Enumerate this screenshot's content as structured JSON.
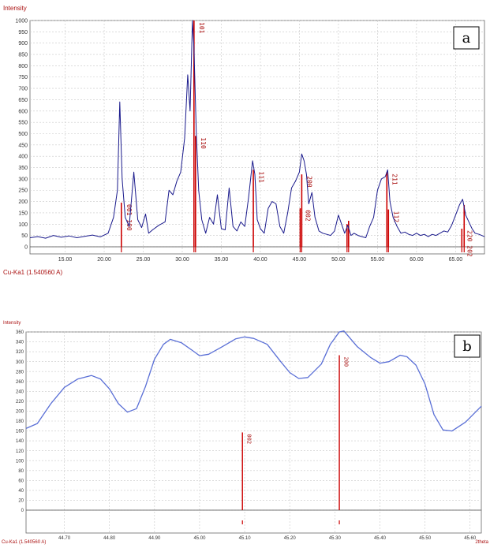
{
  "chart_data": [
    {
      "type": "line",
      "panel": "a",
      "ylabel": "Intensity",
      "xlabel": "Cu-Ka1 (1.540560 A)",
      "xlim": [
        10.5,
        68.7
      ],
      "ylim": [
        0,
        1000
      ],
      "y_ticks": [
        0,
        50,
        100,
        150,
        200,
        250,
        300,
        350,
        400,
        450,
        500,
        550,
        600,
        650,
        700,
        750,
        800,
        850,
        900,
        950,
        1000
      ],
      "x_ticks": [
        "15.00",
        "20.00",
        "25.00",
        "30.00",
        "35.00",
        "40.00",
        "45.00",
        "50.00",
        "55.00",
        "60.00",
        "65.00"
      ],
      "grid": true,
      "series": [
        {
          "color": "#1a1a8c",
          "x": [
            10.5,
            11.5,
            12.5,
            13.5,
            14.5,
            15.5,
            16.5,
            17.5,
            18.5,
            19.5,
            20.5,
            21.2,
            21.7,
            22.0,
            22.3,
            22.7,
            23.2,
            23.8,
            24.3,
            24.8,
            25.3,
            25.7,
            26.2,
            27.0,
            27.8,
            28.3,
            28.8,
            29.3,
            29.8,
            30.3,
            30.7,
            31.0,
            31.3,
            31.5,
            31.8,
            32.1,
            32.5,
            33.0,
            33.5,
            34.0,
            34.5,
            35.0,
            35.5,
            36.0,
            36.5,
            37.0,
            37.5,
            38.0,
            38.5,
            39.0,
            39.3,
            39.6,
            40.0,
            40.5,
            41.0,
            41.5,
            42.0,
            42.5,
            43.0,
            43.5,
            44.0,
            44.5,
            45.0,
            45.3,
            45.6,
            45.9,
            46.2,
            46.6,
            47.0,
            47.5,
            48.0,
            48.5,
            49.0,
            49.5,
            50.0,
            50.4,
            50.8,
            51.2,
            51.6,
            52.0,
            52.5,
            53.0,
            53.5,
            54.0,
            54.5,
            55.0,
            55.5,
            56.0,
            56.3,
            56.6,
            57.0,
            57.5,
            58.0,
            58.5,
            59.0,
            59.5,
            60.0,
            60.5,
            61.0,
            61.5,
            62.0,
            62.5,
            63.0,
            63.5,
            64.0,
            64.5,
            65.0,
            65.5,
            65.9,
            66.3,
            66.7,
            67.1,
            67.5,
            68.0,
            68.7
          ],
          "y": [
            40,
            45,
            38,
            50,
            42,
            48,
            40,
            46,
            52,
            44,
            60,
            130,
            250,
            640,
            300,
            130,
            90,
            330,
            120,
            85,
            145,
            60,
            75,
            95,
            110,
            250,
            230,
            290,
            330,
            480,
            760,
            600,
            1000,
            880,
            500,
            250,
            120,
            60,
            130,
            100,
            230,
            80,
            75,
            260,
            90,
            70,
            110,
            90,
            220,
            380,
            320,
            120,
            80,
            60,
            170,
            200,
            190,
            90,
            60,
            150,
            260,
            290,
            330,
            410,
            380,
            320,
            190,
            240,
            130,
            70,
            60,
            55,
            50,
            70,
            140,
            100,
            60,
            95,
            50,
            60,
            50,
            45,
            40,
            90,
            130,
            250,
            300,
            310,
            340,
            200,
            130,
            90,
            60,
            65,
            55,
            50,
            60,
            50,
            55,
            45,
            55,
            50,
            60,
            70,
            65,
            95,
            140,
            185,
            210,
            140,
            110,
            80,
            60,
            55,
            45
          ]
        }
      ],
      "reference_lines": [
        {
          "x": 22.2,
          "y": 195,
          "label": "001 100"
        },
        {
          "x": 31.5,
          "y": 1000,
          "label": "101"
        },
        {
          "x": 31.7,
          "y": 490,
          "label": "110"
        },
        {
          "x": 39.1,
          "y": 340,
          "label": "111"
        },
        {
          "x": 45.1,
          "y": 170,
          "label": "002"
        },
        {
          "x": 45.3,
          "y": 320,
          "label": "200"
        },
        {
          "x": 51.1,
          "y": 100,
          "label": ""
        },
        {
          "x": 51.3,
          "y": 115,
          "label": ""
        },
        {
          "x": 56.2,
          "y": 330,
          "label": "211"
        },
        {
          "x": 56.4,
          "y": 165,
          "label": "112"
        },
        {
          "x": 65.8,
          "y": 80,
          "label": "220 202"
        },
        {
          "x": 66.1,
          "y": 185,
          "label": ""
        }
      ]
    },
    {
      "type": "line",
      "panel": "b",
      "ylabel": "Intensity",
      "xlabel": "Cu-Ka1 (1.540560 A)",
      "xlabel_right": "2theta",
      "xlim": [
        44.615,
        45.625
      ],
      "ylim": [
        0,
        360
      ],
      "y_ticks": [
        0,
        20,
        40,
        60,
        80,
        100,
        120,
        140,
        160,
        180,
        200,
        220,
        240,
        260,
        280,
        300,
        320,
        340,
        360
      ],
      "x_ticks": [
        "44.70",
        "44.80",
        "44.90",
        "45.00",
        "45.10",
        "45.20",
        "45.30",
        "45.40",
        "45.50",
        "45.60"
      ],
      "grid": true,
      "series": [
        {
          "color": "#5a6fd6",
          "x": [
            44.615,
            44.64,
            44.67,
            44.7,
            44.73,
            44.76,
            44.78,
            44.8,
            44.82,
            44.84,
            44.86,
            44.88,
            44.9,
            44.92,
            44.935,
            44.96,
            44.985,
            45.0,
            45.02,
            45.05,
            45.08,
            45.1,
            45.12,
            45.15,
            45.18,
            45.2,
            45.22,
            45.24,
            45.27,
            45.29,
            45.31,
            45.32,
            45.35,
            45.38,
            45.4,
            45.42,
            45.445,
            45.46,
            45.48,
            45.5,
            45.52,
            45.54,
            45.56,
            45.59,
            45.625
          ],
          "y": [
            165,
            175,
            215,
            248,
            265,
            272,
            265,
            245,
            215,
            198,
            205,
            250,
            305,
            335,
            345,
            338,
            322,
            312,
            315,
            330,
            346,
            350,
            347,
            335,
            300,
            278,
            266,
            268,
            295,
            335,
            360,
            362,
            330,
            308,
            297,
            300,
            313,
            310,
            293,
            255,
            193,
            162,
            160,
            178,
            210
          ]
        }
      ],
      "reference_lines": [
        {
          "x": 45.095,
          "y": 157,
          "label": "002"
        },
        {
          "x": 45.31,
          "y": 313,
          "label": "200"
        }
      ]
    }
  ],
  "panel_a": {
    "tag": "a",
    "ylabel": "Intensity",
    "footer": "Cu-Ka1 (1.540560 A)"
  },
  "panel_b": {
    "tag": "b",
    "ylabel": "Intensity",
    "footer_left": "Cu-Ka1 (1.540560 A)",
    "footer_right": "2theta"
  }
}
